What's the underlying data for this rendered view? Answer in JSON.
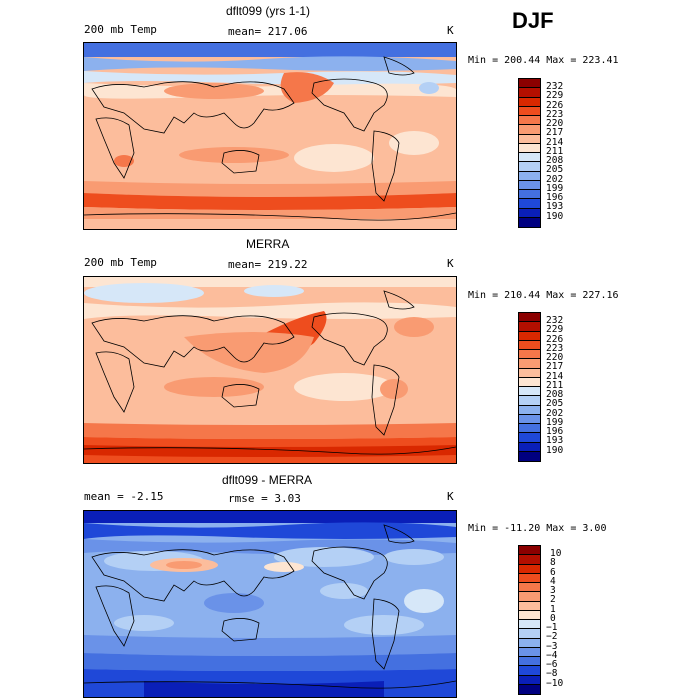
{
  "season": "DJF",
  "panels": [
    {
      "title": "dflt099 (yrs 1-1)",
      "left": "200 mb Temp",
      "center": "mean= 217.06",
      "unit": "K",
      "minmax": "Min = 200.44 Max = 223.41",
      "levels": [
        "232",
        "229",
        "226",
        "223",
        "220",
        "217",
        "214",
        "211",
        "208",
        "205",
        "202",
        "199",
        "196",
        "193",
        "190"
      ],
      "colors": [
        "#8b0000",
        "#b30f00",
        "#d92800",
        "#ee4d1e",
        "#f5774a",
        "#f99b72",
        "#fcbd9c",
        "#fde5d2",
        "#d6e7f8",
        "#b4d0f5",
        "#8cb1ee",
        "#6a92e8",
        "#4470e0",
        "#1f48d8",
        "#0a1fb8",
        "#000080"
      ]
    },
    {
      "title": "MERRA",
      "left": "200 mb Temp",
      "center": "mean= 219.22",
      "unit": "K",
      "minmax": "Min = 210.44 Max = 227.16",
      "levels": [
        "232",
        "229",
        "226",
        "223",
        "220",
        "217",
        "214",
        "211",
        "208",
        "205",
        "202",
        "199",
        "196",
        "193",
        "190"
      ],
      "colors": [
        "#8b0000",
        "#b30f00",
        "#d92800",
        "#ee4d1e",
        "#f5774a",
        "#f99b72",
        "#fcbd9c",
        "#fde5d2",
        "#d6e7f8",
        "#b4d0f5",
        "#8cb1ee",
        "#6a92e8",
        "#4470e0",
        "#1f48d8",
        "#0a1fb8",
        "#000080"
      ]
    },
    {
      "title": "dflt099 - MERRA",
      "left": "mean = -2.15",
      "center": "rmse = 3.03",
      "unit": "K",
      "minmax": "Min = -11.20 Max = 3.00",
      "levels": [
        "10",
        "8",
        "6",
        "4",
        "3",
        "2",
        "1",
        "0",
        "−1",
        "−2",
        "−3",
        "−4",
        "−6",
        "−8",
        "−10"
      ],
      "colors": [
        "#8b0000",
        "#b30f00",
        "#d92800",
        "#ee4d1e",
        "#f5774a",
        "#f99b72",
        "#fcbd9c",
        "#fde5d2",
        "#d6e7f8",
        "#b4d0f5",
        "#8cb1ee",
        "#6a92e8",
        "#4470e0",
        "#1f48d8",
        "#0a1fb8",
        "#000080"
      ]
    }
  ]
}
